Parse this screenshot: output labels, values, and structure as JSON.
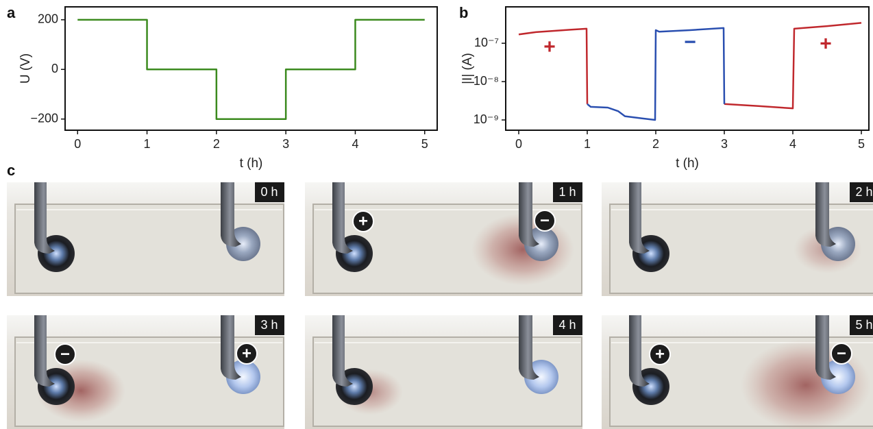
{
  "chart_data": [
    {
      "type": "line",
      "panel": "a",
      "xlabel": "t (h)",
      "ylabel": "U (V)",
      "color": "#3b8a1e",
      "x": [
        0,
        1,
        1,
        2,
        2,
        3,
        3,
        4,
        4,
        5
      ],
      "values": [
        200,
        200,
        0,
        0,
        -200,
        -200,
        0,
        0,
        200,
        200
      ],
      "xlim": [
        -0.18,
        5.18
      ],
      "ylim": [
        -245,
        252
      ],
      "xticks": [
        0,
        1,
        2,
        3,
        4,
        5
      ],
      "yticks": [
        {
          "value": -200,
          "label": "−200"
        },
        0,
        200
      ]
    },
    {
      "type": "line",
      "panel": "b",
      "xlabel": "t (h)",
      "ylabel": "|I| (A)",
      "log_y": true,
      "series": [
        {
          "color": "#c0282d",
          "x": [
            0,
            0.25,
            0.5,
            0.75,
            0.99,
            1.0,
            null,
            3.0,
            3.5,
            4.0,
            4.02,
            4.5,
            5.0
          ],
          "values": [
            1.7e-07,
            1.95e-07,
            2.1e-07,
            2.25e-07,
            2.4e-07,
            2.6e-09,
            null,
            2.6e-09,
            2.3e-09,
            2e-09,
            2.4e-07,
            2.8e-07,
            3.4e-07
          ]
        },
        {
          "color": "#2a4fb0",
          "x": [
            1.0,
            1.05,
            1.3,
            1.45,
            1.55,
            1.8,
            1.99,
            2.0,
            2.05,
            2.5,
            2.99,
            3.0
          ],
          "values": [
            2.6e-09,
            2.2e-09,
            2.1e-09,
            1.7e-09,
            1.25e-09,
            1.1e-09,
            1e-09,
            2.2e-07,
            2e-07,
            2.2e-07,
            2.5e-07,
            2.6e-09
          ]
        }
      ],
      "annotations": [
        {
          "text": "+",
          "x": 0.45,
          "y": 7.5e-08,
          "color": "#c0282d"
        },
        {
          "text": "−",
          "x": 2.5,
          "y": 1e-07,
          "color": "#2a4fb0"
        },
        {
          "text": "+",
          "x": 4.48,
          "y": 9e-08,
          "color": "#c0282d"
        }
      ],
      "xlim": [
        -0.19,
        5.11
      ],
      "ylim": [
        5.4e-10,
        8.9e-07
      ],
      "xticks": [
        0,
        1,
        2,
        3,
        4,
        5
      ],
      "yticks": [
        {
          "value": 1e-09,
          "label": "10⁻⁹"
        },
        {
          "value": 1e-08,
          "label": "10⁻⁸"
        },
        {
          "value": 1e-07,
          "label": "10⁻⁷"
        }
      ]
    }
  ],
  "photos": {
    "panel": "c",
    "items": [
      {
        "time": "0 h"
      },
      {
        "time": "1 h",
        "left_sign": "+",
        "right_sign": "−"
      },
      {
        "time": "2 h"
      },
      {
        "time": "3 h",
        "left_sign": "−",
        "right_sign": "+"
      },
      {
        "time": "4 h"
      },
      {
        "time": "5 h",
        "left_sign": "+",
        "right_sign": "−"
      }
    ]
  }
}
